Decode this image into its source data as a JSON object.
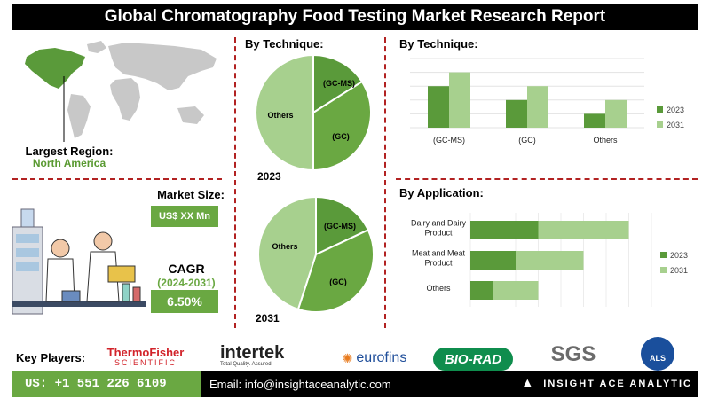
{
  "title": "Global Chromatography Food Testing Market Research Report",
  "region": {
    "label": "Largest Region:",
    "value": "North America"
  },
  "market_size": {
    "label": "Market Size:",
    "value": "US$ XX Mn"
  },
  "cagr": {
    "label": "CAGR",
    "period": "(2024-2031)",
    "value": "6.50%"
  },
  "pie_section": {
    "heading": "By Technique:",
    "year_2023": "2023",
    "year_2031": "2031"
  },
  "technique_bar_section": {
    "heading": "By Technique:"
  },
  "application_section": {
    "heading": "By Application:"
  },
  "colors": {
    "dark_green": "#5a9a3a",
    "mid_green": "#6aa842",
    "light_green": "#a7d08e",
    "divider": "#b22222"
  },
  "chart_data": [
    {
      "type": "pie",
      "year": "2023",
      "labels": [
        "(GC-MS)",
        "(GC)",
        "Others"
      ],
      "values": [
        16,
        34,
        50
      ],
      "colors": [
        "#5a9a3a",
        "#6aa842",
        "#a7d08e"
      ]
    },
    {
      "type": "pie",
      "year": "2031",
      "labels": [
        "(GC-MS)",
        "(GC)",
        "Others"
      ],
      "values": [
        18,
        37,
        45
      ],
      "colors": [
        "#5a9a3a",
        "#6aa842",
        "#a7d08e"
      ]
    },
    {
      "type": "bar",
      "orientation": "vertical",
      "categories": [
        "(GC-MS)",
        "(GC)",
        "Others"
      ],
      "series": [
        {
          "name": "2023",
          "values": [
            0.6,
            0.4,
            0.2
          ],
          "color": "#5a9a3a"
        },
        {
          "name": "2031",
          "values": [
            0.8,
            0.6,
            0.4
          ],
          "color": "#a7d08e"
        }
      ],
      "ylim": [
        0,
        1
      ],
      "legend": "right"
    },
    {
      "type": "bar",
      "orientation": "horizontal",
      "stacked": true,
      "categories": [
        "Dairy and Dairy Product",
        "Meat and Meat Product",
        "Others"
      ],
      "series": [
        {
          "name": "2023",
          "values": [
            3,
            2,
            1
          ],
          "color": "#5a9a3a"
        },
        {
          "name": "2031",
          "values": [
            4,
            3,
            2
          ],
          "color": "#a7d08e"
        }
      ],
      "xlim": [
        0,
        8
      ],
      "legend": "right"
    }
  ],
  "key_players": {
    "label": "Key Players:",
    "thermo_top": "ThermoFisher",
    "thermo_bottom": "SCIENTIFIC",
    "intertek": "intertek",
    "intertek_tag": "Total Quality. Assured.",
    "eurofins": "eurofins",
    "biorad": "BIO-RAD",
    "sgs": "SGS",
    "als": "ALS"
  },
  "footer": {
    "phone": "US: +1 551 226 6109",
    "email": "Email: info@insightaceanalytic.com",
    "brand": "INSIGHT ACE ANALYTIC"
  }
}
